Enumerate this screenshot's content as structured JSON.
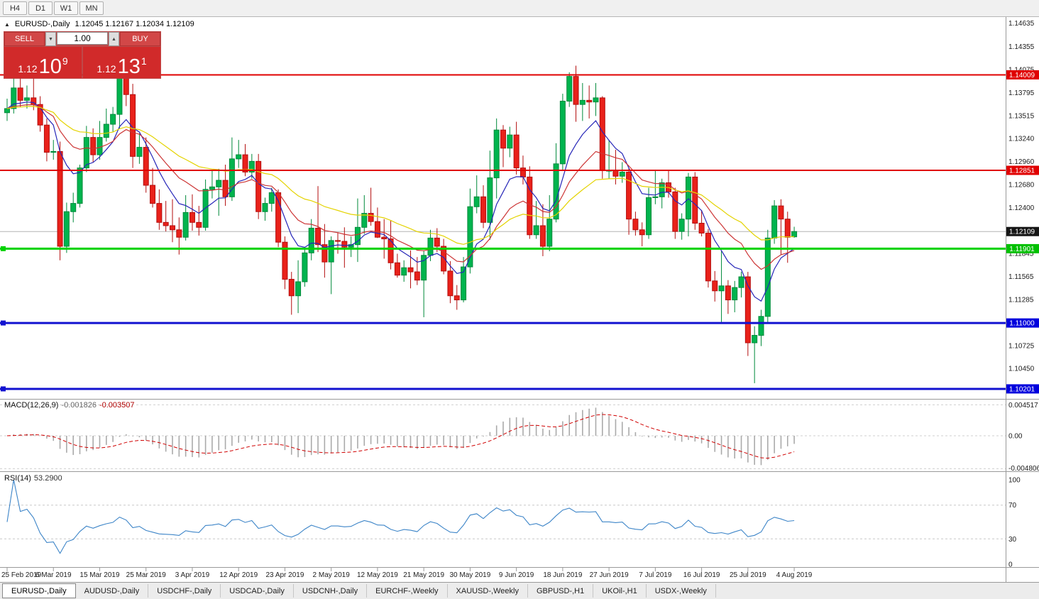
{
  "toolbar": {
    "timeframes": [
      "H4",
      "D1",
      "W1",
      "MN"
    ]
  },
  "chart": {
    "collapse_icon": "▲",
    "title": "EURUSD-,Daily",
    "ohlc": "1.12045 1.12167 1.12034 1.12109"
  },
  "trade_panel": {
    "sell_label": "SELL",
    "buy_label": "BUY",
    "volume": "1.00",
    "spinner_down": "▼",
    "spinner_up": "▲",
    "sell_price": {
      "prefix": "1.12",
      "big": "10",
      "sup": "9"
    },
    "buy_price": {
      "prefix": "1.12",
      "big": "13",
      "sup": "1"
    }
  },
  "price_axis": {
    "labels": [
      "1.14635",
      "1.14355",
      "1.14075",
      "1.13795",
      "1.13515",
      "1.13240",
      "1.12960",
      "1.12680",
      "1.12400",
      "1.12120",
      "1.11845",
      "1.11565",
      "1.11285",
      "1.10725",
      "1.10450"
    ],
    "badges": [
      {
        "text": "1.14009",
        "value": 1.14009,
        "color": "#e00000"
      },
      {
        "text": "1.12851",
        "value": 1.12851,
        "color": "#e00000"
      },
      {
        "text": "1.12109",
        "value": 1.12109,
        "color": "#151515"
      },
      {
        "text": "1.11901",
        "value": 1.11901,
        "color": "#00c000"
      },
      {
        "text": "1.11000",
        "value": 1.11,
        "color": "#0000dd"
      },
      {
        "text": "1.10201",
        "value": 1.10201,
        "color": "#0000dd"
      }
    ]
  },
  "hlines": [
    {
      "value": 1.14009,
      "color": "#e00000",
      "width": 2,
      "anchor": false,
      "current": false
    },
    {
      "value": 1.12851,
      "color": "#e00000",
      "width": 2,
      "anchor": false,
      "current": false
    },
    {
      "value": 1.12109,
      "color": "#b4b4b4",
      "width": 1,
      "anchor": false,
      "current": true
    },
    {
      "value": 1.11901,
      "color": "#00d200",
      "width": 3,
      "anchor": true,
      "current": false
    },
    {
      "value": 1.11,
      "color": "#1212d0",
      "width": 3,
      "anchor": true,
      "current": false
    },
    {
      "value": 1.10201,
      "color": "#1212d0",
      "width": 3,
      "anchor": true,
      "current": false
    }
  ],
  "macd": {
    "name": "MACD(12,26,9)",
    "value": "-0.001826",
    "signal": "-0.003507",
    "params": [
      12,
      26,
      9
    ],
    "axis": [
      "0.004517",
      "0.00",
      "-0.004806"
    ]
  },
  "rsi": {
    "name": "RSI(14)",
    "value": "53.2900",
    "period": 14,
    "levels": [
      70,
      30
    ],
    "axis": [
      "100",
      "70",
      "30",
      "0"
    ]
  },
  "date_axis": [
    "25 Feb 2019",
    "6 Mar 2019",
    "15 Mar 2019",
    "25 Mar 2019",
    "3 Apr 2019",
    "12 Apr 2019",
    "23 Apr 2019",
    "2 May 2019",
    "12 May 2019",
    "21 May 2019",
    "30 May 2019",
    "9 Jun 2019",
    "18 Jun 2019",
    "27 Jun 2019",
    "7 Jul 2019",
    "16 Jul 2019",
    "25 Jul 2019",
    "4 Aug 2019"
  ],
  "tabs": [
    {
      "label": "EURUSD-,Daily",
      "active": true
    },
    {
      "label": "AUDUSD-,Daily",
      "active": false
    },
    {
      "label": "USDCHF-,Daily",
      "active": false
    },
    {
      "label": "USDCAD-,Daily",
      "active": false
    },
    {
      "label": "USDCNH-,Daily",
      "active": false
    },
    {
      "label": "EURCHF-,Weekly",
      "active": false
    },
    {
      "label": "XAUUSD-,Weekly",
      "active": false
    },
    {
      "label": "GBPUSD-,H1",
      "active": false
    },
    {
      "label": "UKOil-,H1",
      "active": false
    },
    {
      "label": "USDX-,Weekly",
      "active": false
    }
  ],
  "chart_data": {
    "type": "candlestick",
    "symbol": "EURUSD-",
    "timeframe": "Daily",
    "title": "EURUSD-,Daily",
    "last_ohlc": {
      "open": 1.12045,
      "high": 1.12167,
      "low": 1.12034,
      "close": 1.12109
    },
    "price_range": [
      1.1008,
      1.1471
    ],
    "colors": {
      "bull": "#00b44e",
      "bull_border": "#008a3a",
      "bear": "#e9211a",
      "bear_border": "#b30e0e"
    },
    "overlays": [
      {
        "name": "ma-fast-blue",
        "type": "ema",
        "period": 8,
        "color": "#2626b8"
      },
      {
        "name": "ma-mid-red",
        "type": "ema",
        "period": 17,
        "color": "#cc3434"
      },
      {
        "name": "ma-slow-yellow",
        "type": "ema",
        "period": 34,
        "color": "#e4d300"
      }
    ],
    "candles": [
      [
        1.1355,
        1.1372,
        1.1345,
        1.136
      ],
      [
        1.136,
        1.1403,
        1.1354,
        1.1385
      ],
      [
        1.1385,
        1.14,
        1.1362,
        1.137
      ],
      [
        1.137,
        1.1388,
        1.136,
        1.1373
      ],
      [
        1.1373,
        1.1398,
        1.1358,
        1.1365
      ],
      [
        1.1365,
        1.1375,
        1.1332,
        1.134
      ],
      [
        1.134,
        1.1348,
        1.1296,
        1.1307
      ],
      [
        1.1307,
        1.1322,
        1.1298,
        1.1308
      ],
      [
        1.1308,
        1.132,
        1.1176,
        1.1193
      ],
      [
        1.1193,
        1.1246,
        1.1185,
        1.1235
      ],
      [
        1.1235,
        1.1258,
        1.1222,
        1.1245
      ],
      [
        1.1245,
        1.1292,
        1.124,
        1.1288
      ],
      [
        1.1288,
        1.1339,
        1.1283,
        1.1325
      ],
      [
        1.1325,
        1.1336,
        1.1295,
        1.1304
      ],
      [
        1.1304,
        1.1345,
        1.1298,
        1.1325
      ],
      [
        1.1325,
        1.136,
        1.132,
        1.1341
      ],
      [
        1.1341,
        1.1362,
        1.1332,
        1.1353
      ],
      [
        1.1353,
        1.142,
        1.1336,
        1.1402
      ],
      [
        1.1402,
        1.1412,
        1.1363,
        1.1377
      ],
      [
        1.1377,
        1.139,
        1.1288,
        1.1302
      ],
      [
        1.1302,
        1.133,
        1.1293,
        1.1313
      ],
      [
        1.1313,
        1.1325,
        1.1258,
        1.1267
      ],
      [
        1.1267,
        1.1288,
        1.124,
        1.1245
      ],
      [
        1.1245,
        1.1262,
        1.1213,
        1.1222
      ],
      [
        1.1222,
        1.1248,
        1.1211,
        1.1218
      ],
      [
        1.1218,
        1.125,
        1.1198,
        1.1213
      ],
      [
        1.1213,
        1.1228,
        1.1183,
        1.1204
      ],
      [
        1.1204,
        1.1255,
        1.12,
        1.1234
      ],
      [
        1.1234,
        1.1256,
        1.1212,
        1.1222
      ],
      [
        1.1222,
        1.1242,
        1.1206,
        1.1216
      ],
      [
        1.1216,
        1.1274,
        1.1212,
        1.1262
      ],
      [
        1.1262,
        1.1285,
        1.1251,
        1.1265
      ],
      [
        1.1265,
        1.1287,
        1.123,
        1.1273
      ],
      [
        1.1273,
        1.1292,
        1.1242,
        1.1253
      ],
      [
        1.1253,
        1.1325,
        1.1248,
        1.1299
      ],
      [
        1.1299,
        1.1322,
        1.1288,
        1.1304
      ],
      [
        1.1304,
        1.1317,
        1.1278,
        1.1283
      ],
      [
        1.1283,
        1.1305,
        1.1275,
        1.1296
      ],
      [
        1.1296,
        1.1305,
        1.1226,
        1.1235
      ],
      [
        1.1235,
        1.1252,
        1.1224,
        1.1245
      ],
      [
        1.1245,
        1.1264,
        1.1235,
        1.1258
      ],
      [
        1.1258,
        1.1262,
        1.1192,
        1.1198
      ],
      [
        1.1198,
        1.1205,
        1.1141,
        1.1153
      ],
      [
        1.1153,
        1.1162,
        1.111,
        1.1133
      ],
      [
        1.1133,
        1.1176,
        1.1112,
        1.115
      ],
      [
        1.115,
        1.1192,
        1.1144,
        1.1185
      ],
      [
        1.1185,
        1.1226,
        1.1176,
        1.1215
      ],
      [
        1.1215,
        1.1266,
        1.1186,
        1.1195
      ],
      [
        1.1195,
        1.122,
        1.1155,
        1.1174
      ],
      [
        1.1174,
        1.1205,
        1.1135,
        1.12
      ],
      [
        1.12,
        1.121,
        1.1184,
        1.1199
      ],
      [
        1.1199,
        1.1216,
        1.1167,
        1.1192
      ],
      [
        1.1192,
        1.1205,
        1.118,
        1.1195
      ],
      [
        1.1195,
        1.1251,
        1.1174,
        1.1216
      ],
      [
        1.1216,
        1.1255,
        1.1208,
        1.1233
      ],
      [
        1.1233,
        1.1264,
        1.1218,
        1.1223
      ],
      [
        1.1223,
        1.124,
        1.1203,
        1.1204
      ],
      [
        1.1204,
        1.1226,
        1.1178,
        1.1202
      ],
      [
        1.1202,
        1.1224,
        1.1165,
        1.1173
      ],
      [
        1.1173,
        1.1184,
        1.1155,
        1.1158
      ],
      [
        1.1158,
        1.1176,
        1.115,
        1.1167
      ],
      [
        1.1167,
        1.1188,
        1.1142,
        1.1162
      ],
      [
        1.1162,
        1.118,
        1.1146,
        1.1152
      ],
      [
        1.1152,
        1.1188,
        1.1107,
        1.1182
      ],
      [
        1.1182,
        1.1213,
        1.1175,
        1.1203
      ],
      [
        1.1203,
        1.1215,
        1.1186,
        1.1193
      ],
      [
        1.1193,
        1.1202,
        1.1159,
        1.1163
      ],
      [
        1.1163,
        1.1175,
        1.1124,
        1.1133
      ],
      [
        1.1133,
        1.1146,
        1.1116,
        1.1128
      ],
      [
        1.1128,
        1.118,
        1.1125,
        1.1168
      ],
      [
        1.1168,
        1.1263,
        1.116,
        1.1241
      ],
      [
        1.1241,
        1.1279,
        1.1233,
        1.1253
      ],
      [
        1.1253,
        1.1267,
        1.1215,
        1.1222
      ],
      [
        1.1222,
        1.1309,
        1.1201,
        1.1276
      ],
      [
        1.1276,
        1.1348,
        1.1251,
        1.1334
      ],
      [
        1.1334,
        1.134,
        1.1289,
        1.1312
      ],
      [
        1.1312,
        1.1338,
        1.1301,
        1.1328
      ],
      [
        1.1328,
        1.1344,
        1.128,
        1.1288
      ],
      [
        1.1288,
        1.1303,
        1.1268,
        1.1277
      ],
      [
        1.1277,
        1.129,
        1.1202,
        1.1207
      ],
      [
        1.1207,
        1.1248,
        1.1202,
        1.1218
      ],
      [
        1.1218,
        1.1244,
        1.1181,
        1.1193
      ],
      [
        1.1193,
        1.1255,
        1.1187,
        1.1226
      ],
      [
        1.1226,
        1.1318,
        1.1222,
        1.1293
      ],
      [
        1.1293,
        1.1378,
        1.1285,
        1.1369
      ],
      [
        1.1369,
        1.1404,
        1.1362,
        1.1399
      ],
      [
        1.1399,
        1.1412,
        1.1344,
        1.1365
      ],
      [
        1.1365,
        1.1391,
        1.1345,
        1.137
      ],
      [
        1.137,
        1.1388,
        1.1348,
        1.1368
      ],
      [
        1.1368,
        1.1391,
        1.1351,
        1.1373
      ],
      [
        1.1373,
        1.1375,
        1.1275,
        1.1285
      ],
      [
        1.1285,
        1.1322,
        1.1275,
        1.1285
      ],
      [
        1.1285,
        1.131,
        1.1268,
        1.1278
      ],
      [
        1.1278,
        1.1295,
        1.127,
        1.1283
      ],
      [
        1.1283,
        1.1288,
        1.1207,
        1.1226
      ],
      [
        1.1226,
        1.1235,
        1.1206,
        1.1213
      ],
      [
        1.1213,
        1.1222,
        1.1193,
        1.1207
      ],
      [
        1.1207,
        1.1264,
        1.1202,
        1.1252
      ],
      [
        1.1252,
        1.1286,
        1.1244,
        1.1253
      ],
      [
        1.1253,
        1.1275,
        1.1239,
        1.127
      ],
      [
        1.127,
        1.1285,
        1.1252,
        1.1259
      ],
      [
        1.1259,
        1.1264,
        1.1202,
        1.1211
      ],
      [
        1.1211,
        1.1233,
        1.1201,
        1.1226
      ],
      [
        1.1226,
        1.1282,
        1.1205,
        1.1277
      ],
      [
        1.1277,
        1.1283,
        1.1213,
        1.1221
      ],
      [
        1.1221,
        1.1237,
        1.1205,
        1.1209
      ],
      [
        1.1209,
        1.1214,
        1.1143,
        1.1151
      ],
      [
        1.1151,
        1.1163,
        1.1126,
        1.1139
      ],
      [
        1.1139,
        1.1187,
        1.1101,
        1.1145
      ],
      [
        1.1145,
        1.1152,
        1.1111,
        1.1128
      ],
      [
        1.1128,
        1.1151,
        1.1113,
        1.1143
      ],
      [
        1.1143,
        1.1162,
        1.1131,
        1.1156
      ],
      [
        1.1156,
        1.1162,
        1.106,
        1.1076
      ],
      [
        1.1076,
        1.1096,
        1.1027,
        1.1085
      ],
      [
        1.1085,
        1.1116,
        1.1072,
        1.1108
      ],
      [
        1.1108,
        1.1213,
        1.1101,
        1.1203
      ],
      [
        1.1203,
        1.1249,
        1.1196,
        1.1242
      ],
      [
        1.1242,
        1.125,
        1.1183,
        1.1226
      ],
      [
        1.1226,
        1.1235,
        1.1173,
        1.1204
      ],
      [
        1.12045,
        1.12167,
        1.12034,
        1.12109
      ]
    ]
  }
}
